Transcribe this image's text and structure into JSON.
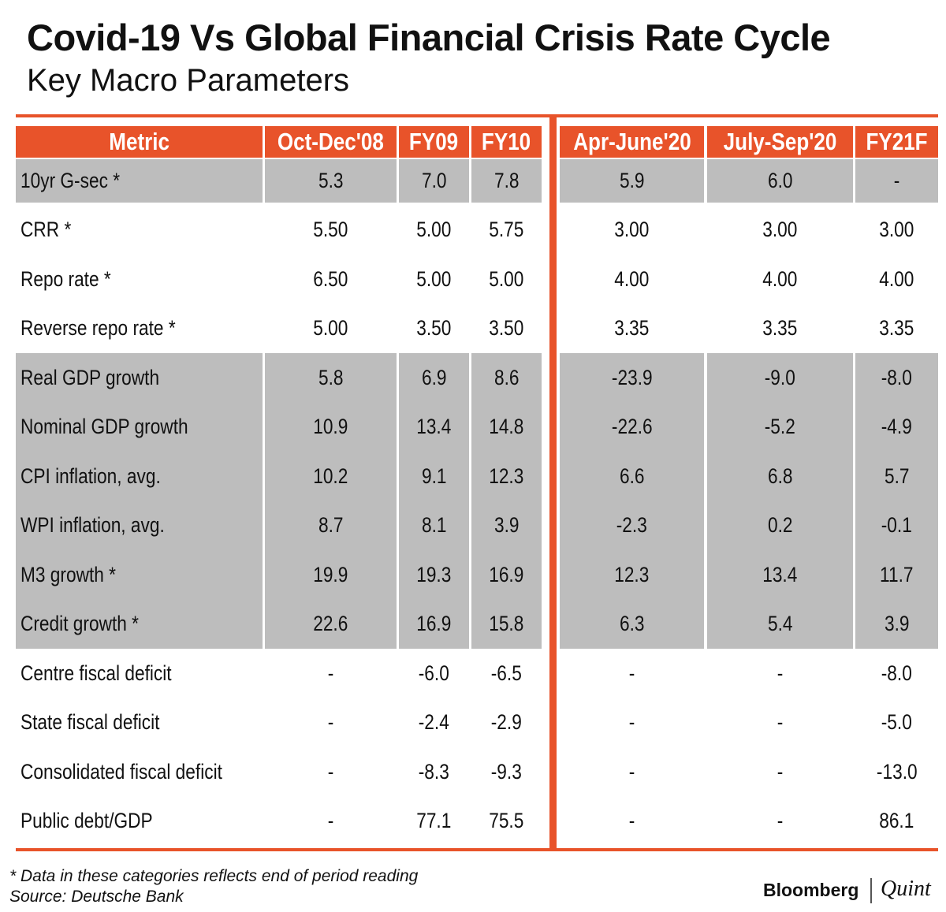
{
  "header": {
    "title": "Covid-19 Vs Global Financial Crisis Rate Cycle",
    "subtitle": "Key Macro Parameters"
  },
  "table": {
    "columns": [
      "Metric",
      "Oct-Dec'08",
      "FY09",
      "FY10",
      "Apr-June'20",
      "July-Sep'20",
      "FY21F"
    ],
    "rows": [
      [
        "10yr G-sec *",
        "5.3",
        "7.0",
        "7.8",
        "5.9",
        "6.0",
        "-"
      ],
      [
        "CRR *",
        "5.50",
        "5.00",
        "5.75",
        "3.00",
        "3.00",
        "3.00"
      ],
      [
        "Repo rate *",
        "6.50",
        "5.00",
        "5.00",
        "4.00",
        "4.00",
        "4.00"
      ],
      [
        "Reverse repo rate *",
        "5.00",
        "3.50",
        "3.50",
        "3.35",
        "3.35",
        "3.35"
      ],
      [
        "Real GDP growth",
        "5.8",
        "6.9",
        "8.6",
        "-23.9",
        "-9.0",
        "-8.0"
      ],
      [
        "Nominal GDP growth",
        "10.9",
        "13.4",
        "14.8",
        "-22.6",
        "-5.2",
        "-4.9"
      ],
      [
        "CPI inflation, avg.",
        "10.2",
        "9.1",
        "12.3",
        "6.6",
        "6.8",
        "5.7"
      ],
      [
        "WPI inflation, avg.",
        "8.7",
        "8.1",
        "3.9",
        "-2.3",
        "0.2",
        "-0.1"
      ],
      [
        "M3 growth *",
        "19.9",
        "19.3",
        "16.9",
        "12.3",
        "13.4",
        "11.7"
      ],
      [
        "Credit growth *",
        "22.6",
        "16.9",
        "15.8",
        "6.3",
        "5.4",
        "3.9"
      ],
      [
        "Centre fiscal deficit",
        "-",
        "-6.0",
        "-6.5",
        "-",
        "-",
        "-8.0"
      ],
      [
        "State fiscal deficit",
        "-",
        "-2.4",
        "-2.9",
        "-",
        "-",
        "-5.0"
      ],
      [
        "Consolidated fiscal deficit",
        "-",
        "-8.3",
        "-9.3",
        "-",
        "-",
        "-13.0"
      ],
      [
        "Public debt/GDP",
        "-",
        "77.1",
        "75.5",
        "-",
        "-",
        "86.1"
      ]
    ]
  },
  "footer": {
    "note": "* Data in these categories reflects end of period reading",
    "source": "Source: Deutsche Bank",
    "brand": [
      "Bloomberg",
      "Quint"
    ]
  }
}
